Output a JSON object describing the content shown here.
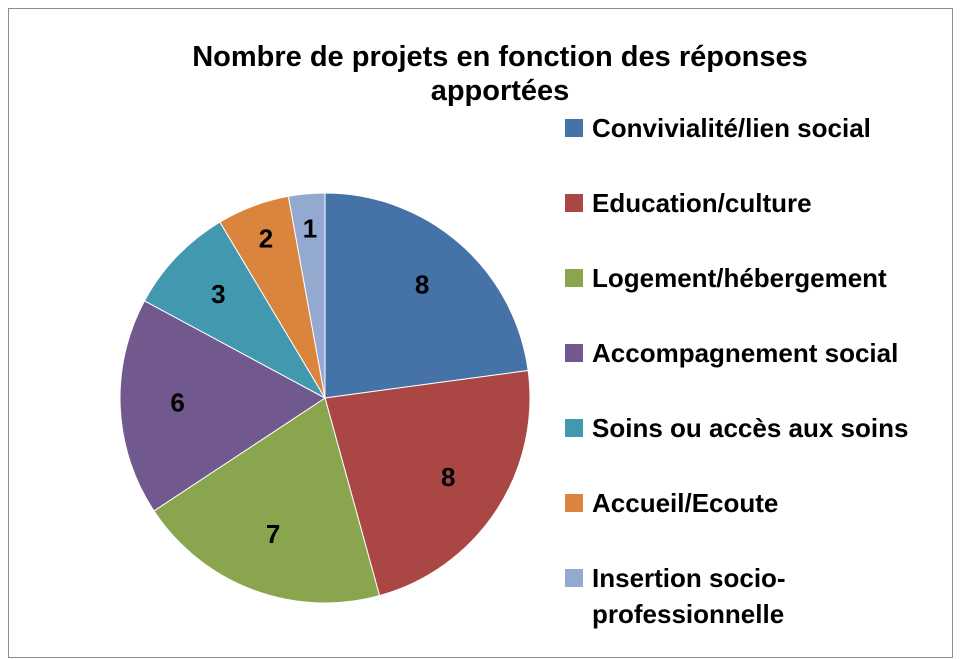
{
  "chart_data": {
    "type": "pie",
    "title": "Nombre de projets en fonction des réponses apportées",
    "categories": [
      "Convivialité/lien social",
      "Education/culture",
      "Logement/hébergement",
      "Accompagnement social",
      "Soins ou accès aux soins",
      "Accueil/Ecoute",
      "Insertion socio-professionnelle"
    ],
    "values": [
      8,
      8,
      7,
      6,
      3,
      2,
      1
    ],
    "colors": [
      "#4572a7",
      "#aa4643",
      "#89a54e",
      "#71588f",
      "#4198af",
      "#db843d",
      "#93a9cf"
    ],
    "legend": "right"
  }
}
